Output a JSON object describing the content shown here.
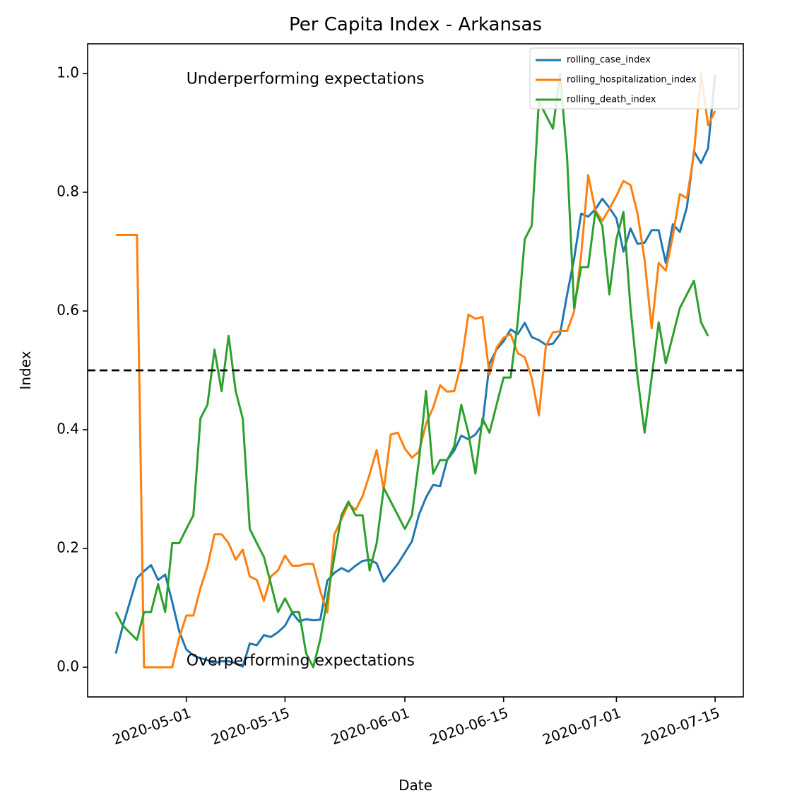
{
  "chart_data": {
    "type": "line",
    "title": "Per Capita Index - Arkansas",
    "xlabel": "Date",
    "ylabel": "Index",
    "x_start": "2020-04-21",
    "xlim": [
      "2020-04-17",
      "2020-07-19"
    ],
    "ylim": [
      -0.05,
      1.05
    ],
    "x_ticks": [
      "2020-05-01",
      "2020-05-15",
      "2020-06-01",
      "2020-06-15",
      "2020-07-01",
      "2020-07-15"
    ],
    "y_ticks": [
      0.0,
      0.2,
      0.4,
      0.6,
      0.8,
      1.0
    ],
    "y_tick_labels": [
      "0.0",
      "0.2",
      "0.4",
      "0.6",
      "0.8",
      "1.0"
    ],
    "reference_line": {
      "y": 0.5,
      "style": "dashed",
      "color": "#000000"
    },
    "annotations": [
      {
        "text": "Underperforming expectations",
        "x": "2020-05-01",
        "y": 0.99
      },
      {
        "text": "Overperforming expectations",
        "x": "2020-05-01",
        "y": 0.01
      }
    ],
    "legend_position": "top-right",
    "series": [
      {
        "name": "rolling_case_index",
        "color": "#1f77b4",
        "values": [
          0.023,
          0.07,
          0.11,
          0.15,
          0.162,
          0.172,
          0.147,
          0.156,
          0.11,
          0.06,
          0.03,
          0.02,
          0.015,
          0.012,
          0.007,
          0.01,
          0.01,
          0.007,
          0.001,
          0.04,
          0.037,
          0.054,
          0.051,
          0.059,
          0.07,
          0.092,
          0.077,
          0.081,
          0.079,
          0.08,
          0.146,
          0.159,
          0.167,
          0.161,
          0.171,
          0.179,
          0.181,
          0.175,
          0.144,
          0.159,
          0.174,
          0.193,
          0.212,
          0.257,
          0.286,
          0.307,
          0.305,
          0.349,
          0.365,
          0.39,
          0.384,
          0.392,
          0.409,
          0.511,
          0.535,
          0.549,
          0.569,
          0.561,
          0.58,
          0.556,
          0.551,
          0.543,
          0.545,
          0.561,
          0.627,
          0.688,
          0.764,
          0.759,
          0.771,
          0.789,
          0.774,
          0.756,
          0.7,
          0.739,
          0.713,
          0.715,
          0.736,
          0.736,
          0.681,
          0.746,
          0.733,
          0.775,
          0.869,
          0.849,
          0.874,
          0.998
        ]
      },
      {
        "name": "rolling_hospitalization_index",
        "color": "#ff7f0e",
        "values": [
          0.728,
          0.728,
          0.728,
          0.728,
          0.0,
          0.0,
          0.0,
          0.0,
          0.0,
          0.05,
          0.087,
          0.087,
          0.133,
          0.17,
          0.224,
          0.224,
          0.209,
          0.181,
          0.198,
          0.153,
          0.147,
          0.112,
          0.153,
          0.163,
          0.188,
          0.171,
          0.171,
          0.174,
          0.174,
          0.128,
          0.092,
          0.224,
          0.249,
          0.275,
          0.265,
          0.288,
          0.325,
          0.366,
          0.299,
          0.392,
          0.395,
          0.368,
          0.353,
          0.363,
          0.41,
          0.437,
          0.475,
          0.464,
          0.465,
          0.511,
          0.594,
          0.587,
          0.59,
          0.493,
          0.538,
          0.555,
          0.561,
          0.529,
          0.522,
          0.487,
          0.424,
          0.541,
          0.564,
          0.566,
          0.566,
          0.599,
          0.694,
          0.829,
          0.77,
          0.752,
          0.772,
          0.794,
          0.819,
          0.812,
          0.764,
          0.686,
          0.571,
          0.681,
          0.668,
          0.726,
          0.797,
          0.79,
          0.865,
          1.0,
          0.913,
          0.937
        ]
      },
      {
        "name": "rolling_death_index",
        "color": "#2ca02c",
        "values": [
          0.093,
          0.07,
          0.058,
          0.046,
          0.093,
          0.093,
          0.14,
          0.093,
          0.209,
          0.209,
          0.233,
          0.256,
          0.419,
          0.442,
          0.535,
          0.465,
          0.558,
          0.465,
          0.419,
          0.233,
          0.209,
          0.186,
          0.14,
          0.093,
          0.116,
          0.093,
          0.093,
          0.023,
          0.0,
          0.047,
          0.116,
          0.186,
          0.256,
          0.279,
          0.256,
          0.256,
          0.163,
          0.209,
          0.302,
          0.279,
          0.256,
          0.233,
          0.256,
          0.349,
          0.465,
          0.326,
          0.349,
          0.349,
          0.372,
          0.442,
          0.395,
          0.326,
          0.419,
          0.395,
          0.442,
          0.488,
          0.488,
          0.581,
          0.721,
          0.744,
          0.953,
          0.93,
          0.907,
          1.0,
          0.86,
          0.605,
          0.674,
          0.674,
          0.767,
          0.744,
          0.628,
          0.721,
          0.767,
          0.605,
          0.488,
          0.395,
          0.488,
          0.581,
          0.512,
          0.558,
          0.605,
          0.628,
          0.651,
          0.581,
          0.558
        ]
      }
    ]
  }
}
